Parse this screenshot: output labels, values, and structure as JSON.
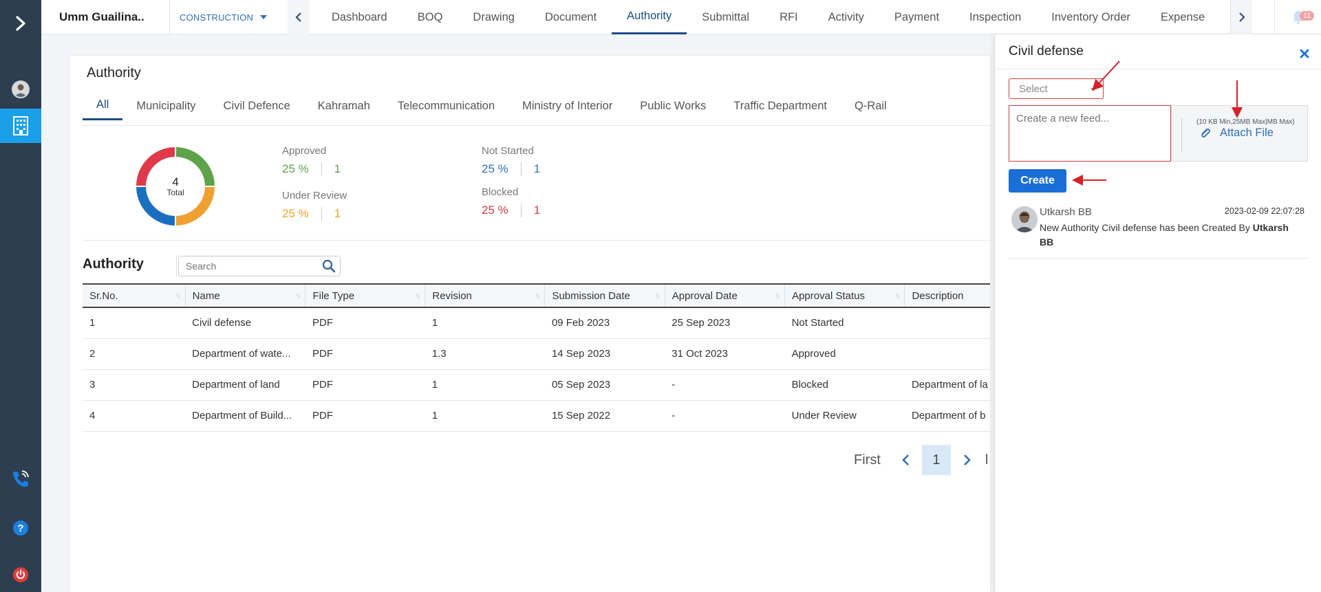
{
  "project": {
    "name": "Umm Guailina..",
    "phase": "CONSTRUCTION"
  },
  "nav": {
    "tabs": [
      "Dashboard",
      "BOQ",
      "Drawing",
      "Document",
      "Authority",
      "Submittal",
      "RFI",
      "Activity",
      "Payment",
      "Inspection",
      "Inventory Order",
      "Expense"
    ],
    "active": "Authority",
    "notification_count": "11"
  },
  "card": {
    "title": "Authority",
    "subtabs": [
      "All",
      "Municipality",
      "Civil Defence",
      "Kahramah",
      "Telecommunication",
      "Ministry of Interior",
      "Public Works",
      "Traffic Department",
      "Q-Rail"
    ],
    "active_subtab": "All"
  },
  "summary": {
    "total": "4",
    "total_label": "Total",
    "stats": [
      {
        "label": "Approved",
        "percent": "25 %",
        "count": "1",
        "color": "#5ea24a"
      },
      {
        "label": "Under Review",
        "percent": "25 %",
        "count": "1",
        "color": "#f0a030"
      },
      {
        "label": "Not Started",
        "percent": "25 %",
        "count": "1",
        "color": "#2f6fb5"
      },
      {
        "label": "Blocked",
        "percent": "25 %",
        "count": "1",
        "color": "#d23b3b"
      }
    ]
  },
  "table": {
    "title": "Authority",
    "search_placeholder": "Search",
    "columns": [
      "Sr.No.",
      "Name",
      "File Type",
      "Revision",
      "Submission Date",
      "Approval Date",
      "Approval Status",
      "Description"
    ],
    "rows": [
      {
        "sr": "1",
        "name": "Civil defense",
        "file_type": "PDF",
        "revision": "1",
        "submission": "09 Feb 2023",
        "approval": "25 Sep 2023",
        "status": "Not Started",
        "description": ""
      },
      {
        "sr": "2",
        "name": "Department of wate...",
        "file_type": "PDF",
        "revision": "1.3",
        "submission": "14 Sep 2023",
        "approval": "31 Oct 2023",
        "status": "Approved",
        "description": ""
      },
      {
        "sr": "3",
        "name": "Department of land",
        "file_type": "PDF",
        "revision": "1",
        "submission": "05 Sep 2023",
        "approval": "-",
        "status": "Blocked",
        "description": "Department of la"
      },
      {
        "sr": "4",
        "name": "Department of Build...",
        "file_type": "PDF",
        "revision": "1",
        "submission": "15 Sep 2022",
        "approval": "-",
        "status": "Under Review",
        "description": "Department of b"
      }
    ]
  },
  "pager": {
    "first": "First",
    "current": "1",
    "last_fragment": "l"
  },
  "panel": {
    "title": "Civil defense",
    "select_placeholder": "Select",
    "feed_placeholder": "Create a new feed...",
    "attach_hint": "(10 KB Min,25MB Max|MB Max)",
    "attach_label": "Attach File",
    "create_label": "Create",
    "feed": [
      {
        "user": "Utkarsh BB",
        "time": "2023-02-09 22:07:28",
        "text": "New Authority Civil defense has been Created By ",
        "by": "Utkarsh BB"
      }
    ]
  },
  "icons": {
    "rail": [
      "chevron-right-icon",
      "avatar-icon",
      "building-icon",
      "call-icon",
      "help-icon",
      "power-icon"
    ]
  }
}
